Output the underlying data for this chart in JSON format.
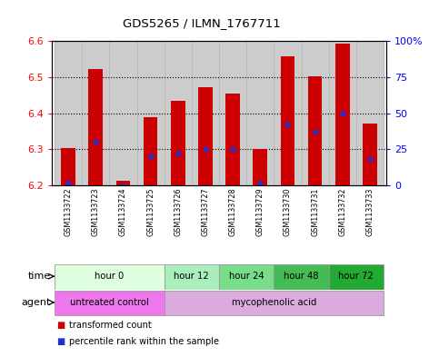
{
  "title": "GDS5265 / ILMN_1767711",
  "samples": [
    "GSM1133722",
    "GSM1133723",
    "GSM1133724",
    "GSM1133725",
    "GSM1133726",
    "GSM1133727",
    "GSM1133728",
    "GSM1133729",
    "GSM1133730",
    "GSM1133731",
    "GSM1133732",
    "GSM1133733"
  ],
  "bar_tops": [
    6.302,
    6.523,
    6.212,
    6.388,
    6.433,
    6.472,
    6.455,
    6.301,
    6.558,
    6.502,
    6.593,
    6.372
  ],
  "bar_base": 6.2,
  "blue_pct": [
    2,
    30,
    0,
    20,
    22,
    25,
    25,
    2,
    42,
    37,
    50,
    18
  ],
  "ylim_left": [
    6.2,
    6.6
  ],
  "ylim_right": [
    0,
    100
  ],
  "yticks_left": [
    6.2,
    6.3,
    6.4,
    6.5,
    6.6
  ],
  "yticks_right": [
    0,
    25,
    50,
    75,
    100
  ],
  "ytick_right_labels": [
    "0",
    "25",
    "50",
    "75",
    "100%"
  ],
  "bar_color": "#cc0000",
  "blue_color": "#2233cc",
  "tick_label_bg": "#cccccc",
  "time_groups": [
    {
      "label": "hour 0",
      "start": 0,
      "end": 3,
      "color": "#ddffdd"
    },
    {
      "label": "hour 12",
      "start": 4,
      "end": 5,
      "color": "#aaeebb"
    },
    {
      "label": "hour 24",
      "start": 6,
      "end": 7,
      "color": "#77dd88"
    },
    {
      "label": "hour 48",
      "start": 8,
      "end": 9,
      "color": "#44bb55"
    },
    {
      "label": "hour 72",
      "start": 10,
      "end": 11,
      "color": "#22aa33"
    }
  ],
  "agent_groups": [
    {
      "label": "untreated control",
      "start": 0,
      "end": 3,
      "color": "#ee77ee"
    },
    {
      "label": "mycophenolic acid",
      "start": 4,
      "end": 11,
      "color": "#ddaadd"
    }
  ],
  "legend_items": [
    {
      "label": "transformed count",
      "color": "#cc0000"
    },
    {
      "label": "percentile rank within the sample",
      "color": "#2233cc"
    }
  ],
  "xlabel_time": "time",
  "xlabel_agent": "agent"
}
